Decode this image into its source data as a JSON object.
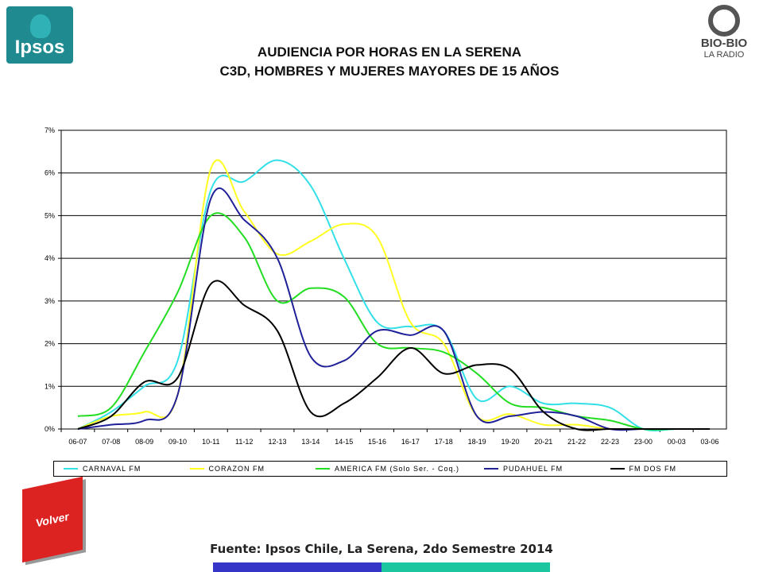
{
  "logos": {
    "ipsos": "Ipsos",
    "bio_line1": "BIO-BIO",
    "bio_line2": "LA RADIO"
  },
  "header": {
    "title_line1": "AUDIENCIA POR HORAS EN LA SERENA",
    "title_line2": "C3D, HOMBRES Y MUJERES MAYORES DE 15 AÑOS"
  },
  "buttons": {
    "volver": "Volver"
  },
  "footer": {
    "source": "Fuente: Ipsos Chile, La Serena, 2do Semestre 2014"
  },
  "chart_data": {
    "type": "line",
    "title": "",
    "xlabel": "",
    "ylabel": "",
    "categories": [
      "06-07",
      "07-08",
      "08-09",
      "09-10",
      "10-11",
      "11-12",
      "12-13",
      "13-14",
      "14-15",
      "15-16",
      "16-17",
      "17-18",
      "18-19",
      "19-20",
      "20-21",
      "21-22",
      "22-23",
      "23-00",
      "00-03",
      "03-06"
    ],
    "y_ticks": [
      "0%",
      "1%",
      "2%",
      "3%",
      "4%",
      "5%",
      "6%",
      "7%"
    ],
    "ylim": [
      0,
      7
    ],
    "grid": true,
    "legend_position": "bottom",
    "series": [
      {
        "name": "CARNAVAL FM",
        "color": "#33e0e8",
        "values": [
          0.0,
          0.4,
          1.0,
          1.6,
          5.6,
          5.8,
          6.3,
          5.7,
          4.0,
          2.5,
          2.4,
          2.3,
          0.7,
          1.0,
          0.6,
          0.6,
          0.5,
          0.0,
          0.0,
          0.0
        ]
      },
      {
        "name": "CORAZON FM",
        "color": "#ffff22",
        "values": [
          0.0,
          0.3,
          0.4,
          0.8,
          6.1,
          5.1,
          4.1,
          4.4,
          4.8,
          4.5,
          2.5,
          2.0,
          0.3,
          0.35,
          0.1,
          0.1,
          0.0,
          0.0,
          0.0,
          0.0
        ]
      },
      {
        "name": "AMERICA FM  (Solo Ser. - Coq.)",
        "color": "#22dd22",
        "values": [
          0.3,
          0.5,
          1.8,
          3.2,
          5.0,
          4.5,
          3.0,
          3.3,
          3.1,
          2.0,
          1.9,
          1.8,
          1.3,
          0.6,
          0.5,
          0.3,
          0.2,
          0.0,
          0.0,
          0.0
        ]
      },
      {
        "name": "PUDAHUEL FM",
        "color": "#202098",
        "values": [
          0.0,
          0.1,
          0.2,
          0.8,
          5.4,
          4.9,
          4.0,
          1.7,
          1.6,
          2.3,
          2.2,
          2.3,
          0.3,
          0.3,
          0.4,
          0.3,
          0.0,
          0.0,
          0.0,
          0.0
        ]
      },
      {
        "name": "FM DOS FM",
        "color": "#000000",
        "values": [
          0.0,
          0.3,
          1.1,
          1.2,
          3.4,
          2.9,
          2.3,
          0.4,
          0.6,
          1.2,
          1.9,
          1.3,
          1.5,
          1.4,
          0.4,
          0.0,
          0.0,
          0.0,
          0.0,
          0.0
        ]
      }
    ]
  }
}
